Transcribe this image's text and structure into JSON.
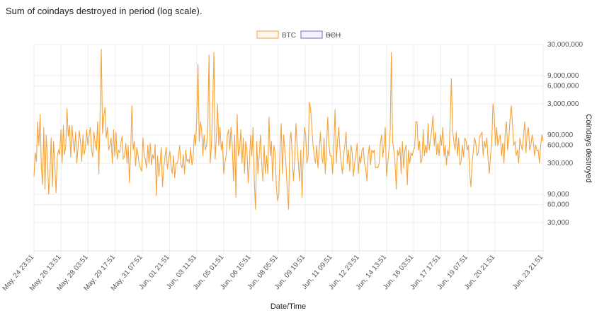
{
  "chart_data": {
    "type": "line",
    "title": "Sum of coindays destroyed in period (log scale).",
    "xlabel": "Date/Time",
    "ylabel": "Coindays destroyed",
    "y_scale": "log",
    "ylim": [
      10000,
      30000000
    ],
    "grid": true,
    "legend_position": "top-center",
    "y_ticks": [
      {
        "value": 30000000,
        "label": "30,000,000"
      },
      {
        "value": 9000000,
        "label": "9,000,000"
      },
      {
        "value": 6000000,
        "label": "6,000,000"
      },
      {
        "value": 3000000,
        "label": "3,000,000"
      },
      {
        "value": 900000,
        "label": "900,000"
      },
      {
        "value": 600000,
        "label": "600,000"
      },
      {
        "value": 300000,
        "label": "300,000"
      },
      {
        "value": 90000,
        "label": "90,000"
      },
      {
        "value": 60000,
        "label": "60,000"
      },
      {
        "value": 30000,
        "label": "30,000"
      }
    ],
    "x_ticks": [
      "May, 24 23:51",
      "May, 26 13:51",
      "May, 28 03:51",
      "May, 29 17:51",
      "May, 31 07:51",
      "Jun, 01 21:51",
      "Jun, 03 11:51",
      "Jun, 05 01:51",
      "Jun, 06 15:51",
      "Jun, 08 05:51",
      "Jun, 09 19:51",
      "Jun, 11 09:51",
      "Jun, 12 23:51",
      "Jun, 14 13:51",
      "Jun, 16 03:51",
      "Jun, 17 17:51",
      "Jun, 19 07:51",
      "Jun, 20 21:51",
      "Jun, 23 21:51"
    ],
    "series": [
      {
        "name": "BTC",
        "color": "#f5a33a",
        "hidden": false,
        "values": [
          180000,
          450000,
          320000,
          1500000,
          600000,
          2000000,
          250000,
          130000,
          1200000,
          110000,
          900000,
          350000,
          90000,
          200000,
          800000,
          120000,
          700000,
          280000,
          95000,
          380000,
          500000,
          420000,
          1100000,
          300000,
          1300000,
          420000,
          600000,
          2500000,
          850000,
          1300000,
          380000,
          1300000,
          700000,
          450000,
          1000000,
          300000,
          550000,
          1050000,
          700000,
          320000,
          900000,
          420000,
          550000,
          1100000,
          600000,
          850000,
          1200000,
          500000,
          380000,
          1000000,
          650000,
          500000,
          1500000,
          200000,
          2000000,
          25000000,
          950000,
          1800000,
          2600000,
          800000,
          1200000,
          500000,
          600000,
          800000,
          300000,
          1100000,
          400000,
          1000000,
          350000,
          500000,
          450000,
          650000,
          850000,
          350000,
          400000,
          650000,
          300000,
          600000,
          140000,
          480000,
          2800000,
          500000,
          700000,
          270000,
          550000,
          420000,
          280000,
          250000,
          220000,
          800000,
          400000,
          350000,
          250000,
          600000,
          300000,
          650000,
          280000,
          420000,
          350000,
          620000,
          85000,
          400000,
          180000,
          300000,
          550000,
          120000,
          250000,
          380000,
          550000,
          240000,
          340000,
          480000,
          260000,
          200000,
          400000,
          170000,
          300000,
          300000,
          360000,
          600000,
          280000,
          250000,
          420000,
          200000,
          500000,
          320000,
          350000,
          300000,
          550000,
          280000,
          350000,
          900000,
          600000,
          1800000,
          14000000,
          700000,
          1500000,
          1100000,
          400000,
          900000,
          500000,
          600000,
          1200000,
          20000000,
          300000,
          600000,
          2800000,
          22000000,
          350000,
          800000,
          3000000,
          600000,
          1200000,
          500000,
          700000,
          200000,
          300000,
          400000,
          900000,
          1100000,
          500000,
          1200000,
          600000,
          150000,
          900000,
          80000,
          2000000,
          400000,
          500000,
          1100000,
          300000,
          800000,
          200000,
          700000,
          500000,
          140000,
          300000,
          900000,
          400000,
          1200000,
          150000,
          50000,
          700000,
          200000,
          400000,
          900000,
          300000,
          150000,
          600000,
          200000,
          400000,
          200000,
          1800000,
          400000,
          700000,
          150000,
          600000,
          450000,
          120000,
          70000,
          90000,
          500000,
          1400000,
          200000,
          900000,
          500000,
          250000,
          100000,
          50000,
          700000,
          1000000,
          400000,
          150000,
          350000,
          1400000,
          600000,
          300000,
          150000,
          500000,
          80000,
          400000,
          1200000,
          900000,
          300000,
          400000,
          3200000,
          2500000,
          1200000,
          600000,
          400000,
          300000,
          600000,
          250000,
          500000,
          1000000,
          400000,
          300000,
          800000,
          200000,
          500000,
          1800000,
          600000,
          400000,
          400000,
          200000,
          600000,
          2400000,
          300000,
          700000,
          1200000,
          500000,
          300000,
          200000,
          400000,
          600000,
          1000000,
          300000,
          500000,
          220000,
          600000,
          450000,
          180000,
          300000,
          400000,
          650000,
          200000,
          400000,
          300000,
          500000,
          550000,
          300000,
          250000,
          150000,
          400000,
          600000,
          280000,
          500000,
          450000,
          500000,
          250000,
          260000,
          250000,
          300000,
          650000,
          900000,
          380000,
          600000,
          1200000,
          180000,
          300000,
          500000,
          1000000,
          22000000,
          700000,
          500000,
          300000,
          110000,
          500000,
          400000,
          550000,
          200000,
          700000,
          250000,
          500000,
          600000,
          130000,
          500000,
          300000,
          450000,
          400000,
          500000,
          550000,
          1500000,
          1500000,
          500000,
          700000,
          300000,
          350000,
          1100000,
          400000,
          600000,
          450000,
          1400000,
          500000,
          800000,
          1100000,
          1900000,
          600000,
          1000000,
          420000,
          650000,
          400000,
          900000,
          600000,
          1200000,
          400000,
          600000,
          280000,
          500000,
          400000,
          1400000,
          8000000,
          1100000,
          700000,
          500000,
          1000000,
          400000,
          800000,
          280000,
          320000,
          600000,
          380000,
          800000,
          700000,
          500000,
          600000,
          200000,
          120000,
          300000,
          500000,
          800000,
          650000,
          400000,
          450000,
          800000,
          900000,
          1000000,
          400000,
          700000,
          550000,
          800000,
          350000,
          200000,
          400000,
          700000,
          3000000,
          2000000,
          600000,
          1200000,
          600000,
          750000,
          900000,
          400000,
          650000,
          300000,
          1000000,
          1500000,
          500000,
          800000,
          1700000,
          2800000,
          1300000,
          600000,
          700000,
          400000,
          500000,
          300000,
          800000,
          600000,
          500000,
          900000,
          1500000,
          450000,
          1000000,
          1200000,
          500000,
          600000,
          900000,
          700000,
          400000,
          600000,
          480000,
          500000,
          300000,
          600000,
          900000,
          700000
        ]
      },
      {
        "name": "BCH",
        "color": "#6e68d6",
        "hidden": true,
        "values": []
      }
    ]
  }
}
